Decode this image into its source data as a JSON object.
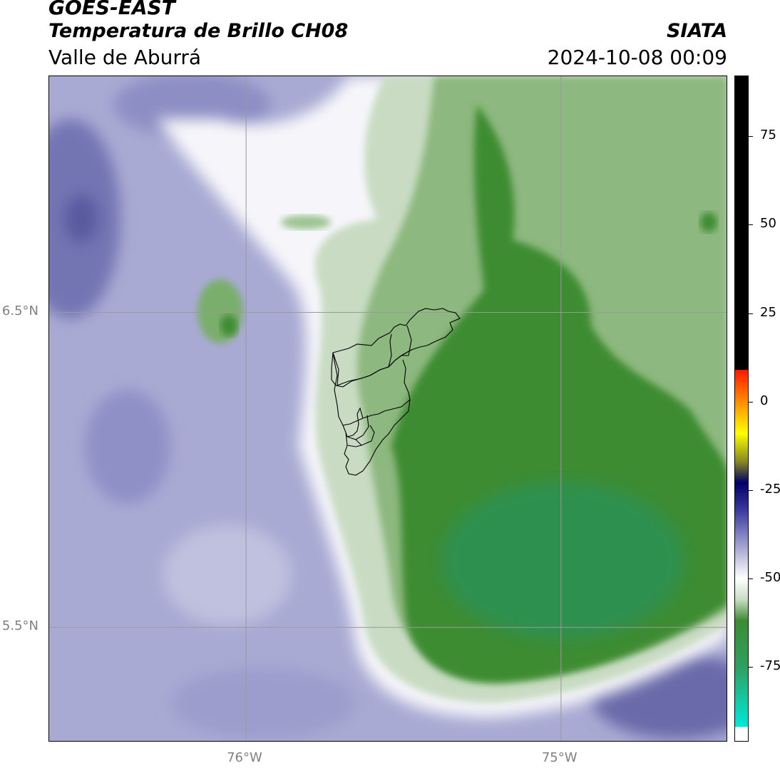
{
  "header": {
    "satellite": "GOES-EAST",
    "product": "Temperatura de Brillo CH08",
    "region": "Valle de Aburrá",
    "agency": "SIATA",
    "datetime": "2024-10-08 00:09"
  },
  "map": {
    "lat_ticks": [
      {
        "label": "6.5°N",
        "value": 6.5
      },
      {
        "label": "5.5°N",
        "value": 5.5
      }
    ],
    "lon_ticks": [
      {
        "label": "76°W",
        "value": -76.0
      },
      {
        "label": "75°W",
        "value": -75.0
      }
    ],
    "extent": {
      "lon_min": -76.625,
      "lon_max": -74.47,
      "lat_min": 5.135,
      "lat_max": 7.25
    },
    "colors": {
      "cold_green": "#3c8c33",
      "core_green": "#2f9050",
      "pale_green": "#c9dcc3",
      "white_band": "#f6f6fa",
      "light_purple": "#a9aad3",
      "deep_purple": "#5a5aa0"
    },
    "boundary_color": "#000000"
  },
  "colorbar": {
    "ticks": [
      {
        "label": "75",
        "value": 75
      },
      {
        "label": "50",
        "value": 50
      },
      {
        "label": "25",
        "value": 25
      },
      {
        "label": "0",
        "value": 0
      },
      {
        "label": "-25",
        "value": -25
      },
      {
        "label": "-50",
        "value": -50
      },
      {
        "label": "-75",
        "value": -75
      }
    ],
    "range": [
      -96,
      92
    ],
    "stops": [
      {
        "value": 92,
        "color": "#000000"
      },
      {
        "value": 9,
        "color": "#000000"
      },
      {
        "value": 8.9,
        "color": "#ff1a00"
      },
      {
        "value": 0,
        "color": "#ff8c00"
      },
      {
        "value": -9,
        "color": "#ffff00"
      },
      {
        "value": -17,
        "color": "#888822"
      },
      {
        "value": -23,
        "color": "#000066"
      },
      {
        "value": -30,
        "color": "#333399"
      },
      {
        "value": -40,
        "color": "#9999cc"
      },
      {
        "value": -50,
        "color": "#ffffff"
      },
      {
        "value": -56,
        "color": "#c9dcc3"
      },
      {
        "value": -62,
        "color": "#3c8c33"
      },
      {
        "value": -75,
        "color": "#2fa060"
      },
      {
        "value": -92,
        "color": "#00e8d8"
      },
      {
        "value": -92.1,
        "color": "#ffffff"
      },
      {
        "value": -96,
        "color": "#ffffff"
      }
    ]
  }
}
